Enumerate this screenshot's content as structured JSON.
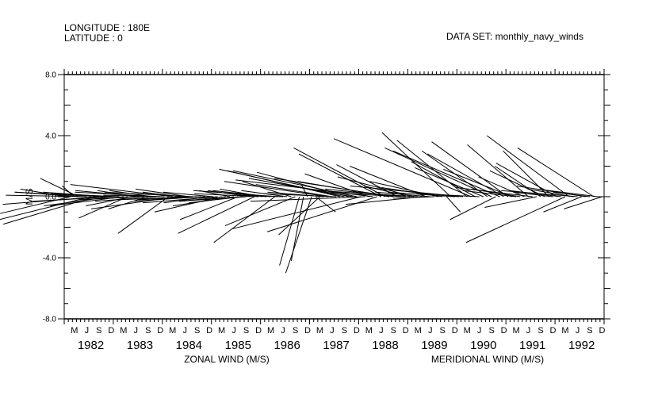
{
  "header": {
    "longitude": "LONGITUDE : 180E",
    "latitude": "LATITUDE : 0",
    "dataset": "DATA SET: monthly_navy_winds"
  },
  "chart_data": {
    "type": "vector_stick",
    "ylabel": "M/S",
    "ylim": [
      -8,
      8
    ],
    "yticks": [
      -8,
      -4,
      0,
      4,
      8
    ],
    "ytick_labels": [
      "-8.0",
      "-4.0",
      "0.0",
      "4.0",
      "8.0"
    ],
    "xlabel_left": "ZONAL WIND (M/S)",
    "xlabel_right": "MERIDIONAL WIND (M/S)",
    "month_labels": [
      "M",
      "J",
      "S",
      "D",
      "M",
      "J",
      "S",
      "D",
      "M",
      "J",
      "S",
      "D",
      "M",
      "J",
      "S",
      "D",
      "M",
      "J",
      "S",
      "D",
      "M",
      "J",
      "S",
      "D",
      "M",
      "J",
      "S",
      "D",
      "M",
      "J",
      "S",
      "D",
      "M",
      "J",
      "S",
      "D",
      "M",
      "J",
      "S",
      "D",
      "M",
      "J",
      "S",
      "D"
    ],
    "years": [
      "1982",
      "1983",
      "1984",
      "1985",
      "1986",
      "1987",
      "1988",
      "1989",
      "1990",
      "1991",
      "1992"
    ],
    "start": "1982-01",
    "months": [
      "1982-01",
      "1982-02",
      "1982-03",
      "1982-04",
      "1982-05",
      "1982-06",
      "1982-07",
      "1982-08",
      "1982-09",
      "1982-10",
      "1982-11",
      "1982-12",
      "1983-01",
      "1983-02",
      "1983-03",
      "1983-04",
      "1983-05",
      "1983-06",
      "1983-07",
      "1983-08",
      "1983-09",
      "1983-10",
      "1983-11",
      "1983-12",
      "1984-01",
      "1984-02",
      "1984-03",
      "1984-04",
      "1984-05",
      "1984-06",
      "1984-07",
      "1984-08",
      "1984-09",
      "1984-10",
      "1984-11",
      "1984-12",
      "1985-01",
      "1985-02",
      "1985-03",
      "1985-04",
      "1985-05",
      "1985-06",
      "1985-07",
      "1985-08",
      "1985-09",
      "1985-10",
      "1985-11",
      "1985-12",
      "1986-01",
      "1986-02",
      "1986-03",
      "1986-04",
      "1986-05",
      "1986-06",
      "1986-07",
      "1986-08",
      "1986-09",
      "1986-10",
      "1986-11",
      "1986-12",
      "1987-01",
      "1987-02",
      "1987-03",
      "1987-04",
      "1987-05",
      "1987-06",
      "1987-07",
      "1987-08",
      "1987-09",
      "1987-10",
      "1987-11",
      "1987-12",
      "1988-01",
      "1988-02",
      "1988-03",
      "1988-04",
      "1988-05",
      "1988-06",
      "1988-07",
      "1988-08",
      "1988-09",
      "1988-10",
      "1988-11",
      "1988-12",
      "1989-01",
      "1989-02",
      "1989-03",
      "1989-04",
      "1989-05",
      "1989-06",
      "1989-07",
      "1989-08",
      "1989-09",
      "1989-10",
      "1989-11",
      "1989-12",
      "1990-01",
      "1990-02",
      "1990-03",
      "1990-04",
      "1990-05",
      "1990-06",
      "1990-07",
      "1990-08",
      "1990-09",
      "1990-10",
      "1990-11",
      "1990-12",
      "1991-01",
      "1991-02",
      "1991-03",
      "1991-04",
      "1991-05",
      "1991-06",
      "1991-07",
      "1991-08",
      "1991-09",
      "1991-10",
      "1991-11",
      "1991-12",
      "1992-01",
      "1992-02",
      "1992-03",
      "1992-04",
      "1992-05",
      "1992-06",
      "1992-07",
      "1992-08",
      "1992-09",
      "1992-10",
      "1992-11",
      "1992-12"
    ],
    "u": [
      -3.0,
      -4.6,
      -0.8,
      -2.5,
      -4.4,
      -5.3,
      -6.0,
      -6.0,
      -6.3,
      -5.8,
      -4.2,
      -4.4,
      -5.4,
      -4.5,
      -4.8,
      -3.2,
      -3.0,
      -2.5,
      -4.0,
      -4.5,
      -2.6,
      -2.8,
      -4.0,
      -5.6,
      -4.0,
      -3.3,
      -6.7,
      -5.6,
      -2.5,
      -3.0,
      -3.5,
      -5.8,
      -5.2,
      -4.4,
      -4.4,
      -3.0,
      -3.3,
      -4.9,
      -4.4,
      -3.0,
      -2.0,
      -4.0,
      -3.8,
      -3.5,
      -4.4,
      -2.8,
      -5.0,
      -4.2,
      -2.8,
      -3.3,
      -3.8,
      -4.0,
      -5.6,
      -3.0,
      -3.0,
      -3.2,
      -4.6,
      -1.3,
      -0.8,
      -0.4,
      -1.7,
      1.3,
      -2.7,
      -3.7,
      -6.8,
      -5.0,
      -4.8,
      -7.4,
      -8.2,
      -6.0,
      -6.8,
      -8.1,
      -8.4,
      -7.5,
      -4.2,
      -9.0,
      -7.2,
      -5.4,
      -6.0,
      -6.0,
      -7.8,
      -4.0,
      -5.0,
      -4.0,
      -3.0,
      -5.0,
      -6.6,
      -5.0,
      -5.0,
      -3.6,
      -2.7,
      -4.5,
      -4.0,
      0.9,
      -4.5,
      -4.4,
      -5.0,
      -7.4,
      -4.6,
      -9.0,
      -4.2,
      -4.0,
      -4.5,
      -4.3,
      -7.0,
      -3.0,
      -7.0,
      -5.0,
      -5.0,
      -4.5,
      -3.5,
      -3.2,
      -3.0,
      -4.0,
      -5.0,
      -3.4,
      -3.0,
      -3.6,
      -3.0,
      -2.6,
      -4.0,
      -3.4,
      -6.5,
      -5.4,
      -3.0,
      -5.0,
      -2.5,
      -4.5,
      -2.4,
      -5.0,
      -4.0,
      -2.5
    ],
    "v": [
      0.5,
      -1.1,
      0.7,
      1.2,
      0.3,
      0.1,
      -1.5,
      -1.8,
      -0.5,
      0.3,
      0.3,
      -0.6,
      -0.3,
      0.2,
      -0.6,
      -1.4,
      -0.6,
      0.4,
      -0.2,
      0.4,
      -0.8,
      0.4,
      -0.3,
      0.3,
      0.1,
      -2.4,
      0.8,
      -0.8,
      0.3,
      -0.2,
      0.5,
      0.3,
      -0.2,
      -0.3,
      -0.2,
      -0.4,
      0.3,
      -0.4,
      -1.0,
      -0.3,
      0.4,
      -0.6,
      -1.5,
      -0.4,
      -0.3,
      0.4,
      -2.4,
      0.2,
      0.5,
      0.3,
      0.4,
      -3.0,
      0.4,
      0.1,
      0.4,
      1.0,
      -1.9,
      -4.5,
      -4.2,
      0.8,
      -5.0,
      -1.0,
      -2.5,
      0.3,
      1.0,
      0.8,
      0.2,
      1.7,
      1.8,
      1.6,
      1.2,
      1.7,
      -2.1,
      -0.3,
      1.5,
      1.1,
      -2.3,
      2.8,
      3.2,
      1.0,
      1.2,
      2.1,
      0.5,
      0.2,
      0.7,
      1.3,
      0.4,
      -0.5,
      2.0,
      0.3,
      -0.1,
      1.0,
      0.6,
      -1.0,
      4.2,
      0.3,
      0.5,
      0.7,
      3.7,
      3.8,
      2.3,
      0.2,
      1.9,
      3.0,
      3.2,
      -1.5,
      3.0,
      2.8,
      3.6,
      1.8,
      0.4,
      0.5,
      1.3,
      3.4,
      0.6,
      -0.7,
      2.0,
      1.7,
      3.0,
      0.3,
      2.2,
      0.4,
      -3.0,
      4.0,
      0.5,
      0.4,
      -1.0,
      0.7,
      0.3,
      3.2,
      0.5,
      -0.8
    ]
  }
}
